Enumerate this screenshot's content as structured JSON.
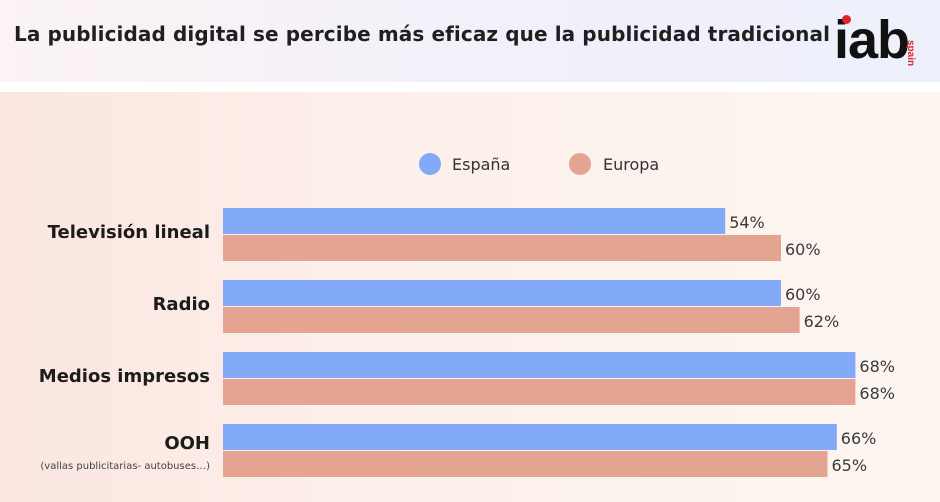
{
  "header": {
    "title": "La publicidad digital se percibe más eficaz que la publicidad tradicional",
    "logo": {
      "main": "iab",
      "sub": "spain"
    }
  },
  "colors": {
    "series_espana": "#82aaf9",
    "series_europa": "#e3a492",
    "logo_accent": "#e0242b"
  },
  "chart_data": {
    "type": "bar",
    "orientation": "horizontal",
    "title": "",
    "xlabel": "",
    "ylabel": "",
    "xlim": [
      0,
      100
    ],
    "grid": false,
    "legend": "top-center",
    "categories": [
      "Televisión lineal",
      "Radio",
      "Medios impresos",
      "OOH"
    ],
    "category_notes": [
      "",
      "",
      "",
      "(vallas publicitarias- autobuses…)"
    ],
    "series": [
      {
        "name": "España",
        "values": [
          54,
          60,
          68,
          66
        ],
        "labels": [
          "54%",
          "60%",
          "68%",
          "66%"
        ]
      },
      {
        "name": "Europa",
        "values": [
          60,
          62,
          68,
          65
        ],
        "labels": [
          "60%",
          "62%",
          "68%",
          "65%"
        ]
      }
    ]
  }
}
